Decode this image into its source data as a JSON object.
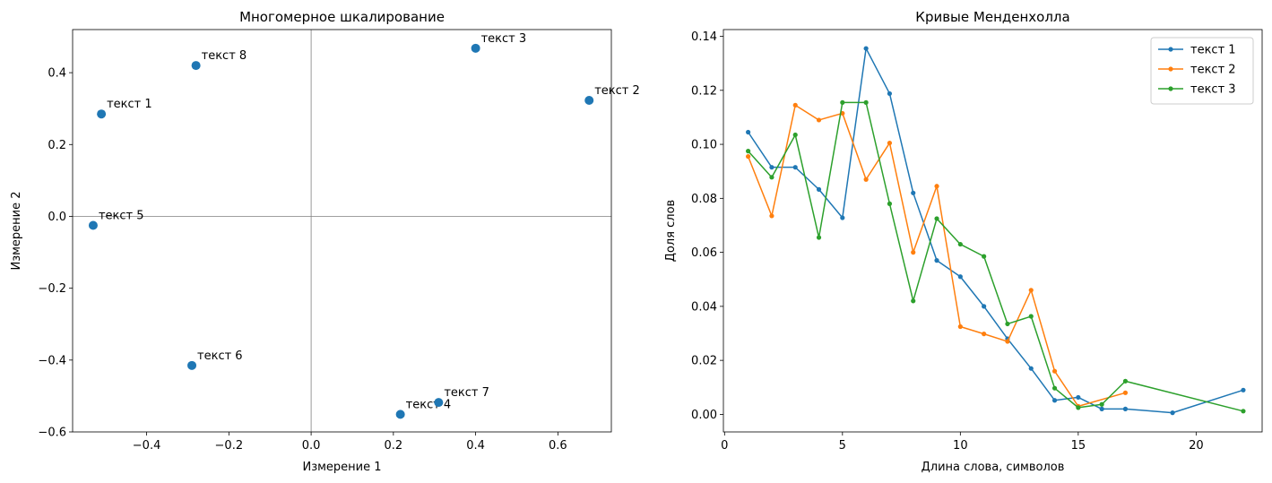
{
  "chart_data": [
    {
      "type": "scatter",
      "title": "Многомерное шкалирование",
      "xlabel": "Измерение 1",
      "ylabel": "Измерение 2",
      "xlim": [
        -0.58,
        0.73
      ],
      "ylim": [
        -0.6,
        0.52
      ],
      "xticks": [
        -0.4,
        -0.2,
        0.0,
        0.2,
        0.4,
        0.6
      ],
      "xtick_labels": [
        "−0.4",
        "−0.2",
        "0.0",
        "0.2",
        "0.4",
        "0.6"
      ],
      "yticks": [
        -0.6,
        -0.4,
        -0.2,
        0.0,
        0.2,
        0.4
      ],
      "ytick_labels": [
        "−0.6",
        "−0.4",
        "−0.2",
        "0.0",
        "0.2",
        "0.4"
      ],
      "reference_lines": {
        "x": 0,
        "y": 0
      },
      "grid": false,
      "color": "#1f77b4",
      "points": [
        {
          "label": "текст 1",
          "x": -0.51,
          "y": 0.285
        },
        {
          "label": "текст 2",
          "x": 0.676,
          "y": 0.323
        },
        {
          "label": "текст 3",
          "x": 0.4,
          "y": 0.468
        },
        {
          "label": "текст 4",
          "x": 0.217,
          "y": -0.551
        },
        {
          "label": "текст 5",
          "x": -0.53,
          "y": -0.025
        },
        {
          "label": "текст 6",
          "x": -0.29,
          "y": -0.415
        },
        {
          "label": "текст 7",
          "x": 0.31,
          "y": -0.518
        },
        {
          "label": "текст 8",
          "x": -0.28,
          "y": 0.42
        }
      ]
    },
    {
      "type": "line",
      "title": "Кривые Менденхолла",
      "xlabel": "Длина слова, символов",
      "ylabel": "Доля слов",
      "xlim": [
        -0.05,
        22.8
      ],
      "ylim": [
        -0.0065,
        0.1425
      ],
      "xticks": [
        0,
        5,
        10,
        15,
        20
      ],
      "xtick_labels": [
        "0",
        "5",
        "10",
        "15",
        "20"
      ],
      "yticks": [
        0.0,
        0.02,
        0.04,
        0.06,
        0.08,
        0.1,
        0.12,
        0.14
      ],
      "ytick_labels": [
        "0.00",
        "0.02",
        "0.04",
        "0.06",
        "0.08",
        "0.10",
        "0.12",
        "0.14"
      ],
      "grid": false,
      "legend": "top-right",
      "series": [
        {
          "name": "текст 1",
          "color": "#1f77b4",
          "x": [
            1,
            2,
            3,
            4,
            5,
            6,
            7,
            8,
            9,
            10,
            11,
            12,
            13,
            14,
            15,
            16,
            17,
            19,
            22
          ],
          "y": [
            0.1045,
            0.0915,
            0.0915,
            0.0833,
            0.0728,
            0.1355,
            0.1188,
            0.082,
            0.057,
            0.051,
            0.04,
            0.028,
            0.017,
            0.0052,
            0.0063,
            0.002,
            0.002,
            0.0006,
            0.009
          ]
        },
        {
          "name": "текст 2",
          "color": "#ff7f0e",
          "x": [
            1,
            2,
            3,
            4,
            5,
            6,
            7,
            8,
            9,
            10,
            11,
            12,
            13,
            14,
            15,
            17
          ],
          "y": [
            0.0955,
            0.0735,
            0.1145,
            0.109,
            0.1115,
            0.087,
            0.1005,
            0.06,
            0.0845,
            0.0325,
            0.0298,
            0.027,
            0.046,
            0.016,
            0.003,
            0.008
          ]
        },
        {
          "name": "текст 3",
          "color": "#2ca02c",
          "x": [
            1,
            2,
            3,
            4,
            5,
            6,
            7,
            8,
            9,
            10,
            11,
            12,
            13,
            14,
            15,
            16,
            17,
            22
          ],
          "y": [
            0.0975,
            0.0878,
            0.1035,
            0.0655,
            0.1155,
            0.1155,
            0.078,
            0.042,
            0.0725,
            0.063,
            0.0585,
            0.0335,
            0.0363,
            0.0097,
            0.0025,
            0.0037,
            0.0123,
            0.0012
          ]
        }
      ]
    }
  ]
}
